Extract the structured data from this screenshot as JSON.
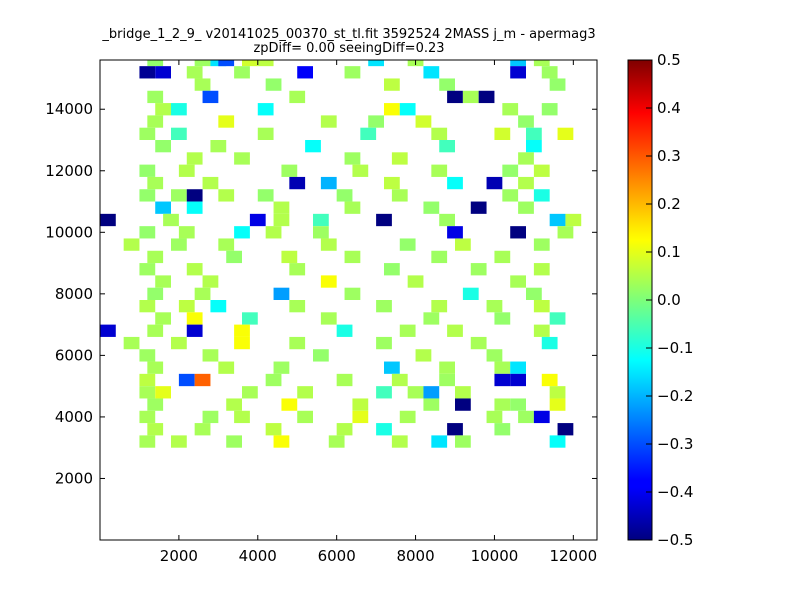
{
  "chart_data": {
    "type": "heatmap",
    "title": "_bridge_1_2_9_ v20141025_00370_st_tl.fit 3592524 2MASS j_m - apermag3",
    "subtitle": "zpDiff= 0.00 seeingDiff=0.23",
    "xlabel": "",
    "ylabel": "",
    "xlim": [
      0,
      12600
    ],
    "ylim": [
      0,
      15600
    ],
    "xticks": [
      2000,
      4000,
      6000,
      8000,
      10000,
      12000
    ],
    "yticks": [
      2000,
      4000,
      6000,
      8000,
      10000,
      12000,
      14000
    ],
    "x_tick_labels": [
      "2000",
      "4000",
      "6000",
      "8000",
      "10000",
      "12000"
    ],
    "y_tick_labels": [
      "2000",
      "4000",
      "6000",
      "8000",
      "10000",
      "12000",
      "14000"
    ],
    "colorbar": {
      "colormap": "jet",
      "vmin": -0.5,
      "vmax": 0.5,
      "ticks": [
        -0.5,
        -0.4,
        -0.3,
        -0.2,
        -0.1,
        0.0,
        0.1,
        0.2,
        0.3,
        0.4,
        0.5
      ],
      "tick_labels": [
        "−0.5",
        "−0.4",
        "−0.3",
        "−0.2",
        "−0.1",
        "0.0",
        "0.1",
        "0.2",
        "0.3",
        "0.4",
        "0.5"
      ]
    },
    "grid": false,
    "bin_size": 400,
    "cells": [
      [
        1200,
        15400,
        0.02
      ],
      [
        2400,
        15400,
        0.03
      ],
      [
        2800,
        15400,
        -0.15
      ],
      [
        3000,
        15400,
        -0.3
      ],
      [
        3600,
        15400,
        0.08
      ],
      [
        4000,
        15400,
        0.06
      ],
      [
        6800,
        15400,
        -0.15
      ],
      [
        7800,
        15400,
        0.04
      ],
      [
        10400,
        15400,
        -0.18
      ],
      [
        11000,
        15400,
        0.04
      ],
      [
        1000,
        15000,
        -0.48
      ],
      [
        1400,
        15000,
        -0.42
      ],
      [
        2200,
        15000,
        0.04
      ],
      [
        3400,
        15000,
        0.03
      ],
      [
        5000,
        15000,
        -0.38
      ],
      [
        6200,
        15000,
        0.03
      ],
      [
        8200,
        15000,
        -0.15
      ],
      [
        10400,
        15000,
        -0.42
      ],
      [
        11200,
        15000,
        0.03
      ],
      [
        2400,
        14600,
        0.04
      ],
      [
        4200,
        14600,
        0.02
      ],
      [
        7200,
        14600,
        0.06
      ],
      [
        8600,
        14600,
        0.02
      ],
      [
        11400,
        14600,
        0.02
      ],
      [
        1200,
        14200,
        0.03
      ],
      [
        2600,
        14200,
        -0.3
      ],
      [
        4800,
        14200,
        0.04
      ],
      [
        8800,
        14200,
        -0.5
      ],
      [
        9200,
        14200,
        0.04
      ],
      [
        9600,
        14200,
        -0.5
      ],
      [
        1400,
        13800,
        0.05
      ],
      [
        1800,
        13800,
        -0.1
      ],
      [
        4000,
        13800,
        -0.12
      ],
      [
        7200,
        13800,
        0.12
      ],
      [
        7600,
        13800,
        -0.12
      ],
      [
        10200,
        13800,
        0.04
      ],
      [
        11200,
        13800,
        0.02
      ],
      [
        1200,
        13400,
        0.04
      ],
      [
        3000,
        13400,
        0.1
      ],
      [
        5600,
        13400,
        0.05
      ],
      [
        6800,
        13400,
        0.02
      ],
      [
        8000,
        13400,
        0.08
      ],
      [
        10600,
        13400,
        0.02
      ],
      [
        1000,
        13000,
        0.03
      ],
      [
        1800,
        13000,
        -0.06
      ],
      [
        4000,
        13000,
        0.04
      ],
      [
        6600,
        13000,
        -0.06
      ],
      [
        8400,
        13000,
        0.05
      ],
      [
        10000,
        13000,
        0.08
      ],
      [
        10800,
        13000,
        -0.06
      ],
      [
        11600,
        13000,
        0.1
      ],
      [
        1400,
        12600,
        0.02
      ],
      [
        2800,
        12600,
        0.04
      ],
      [
        5200,
        12600,
        -0.12
      ],
      [
        8600,
        12600,
        -0.06
      ],
      [
        10800,
        12600,
        -0.12
      ],
      [
        2200,
        12200,
        0.05
      ],
      [
        3400,
        12200,
        0.04
      ],
      [
        6200,
        12200,
        0.03
      ],
      [
        7400,
        12200,
        0.06
      ],
      [
        10600,
        12200,
        0.04
      ],
      [
        1000,
        11800,
        0.02
      ],
      [
        2000,
        11800,
        0.05
      ],
      [
        4600,
        11800,
        0.03
      ],
      [
        6400,
        11800,
        0.05
      ],
      [
        8400,
        11800,
        0.04
      ],
      [
        10200,
        11800,
        0.02
      ],
      [
        11000,
        11800,
        0.06
      ],
      [
        1200,
        11400,
        0.04
      ],
      [
        2600,
        11400,
        0.05
      ],
      [
        4800,
        11400,
        -0.45
      ],
      [
        5600,
        11400,
        -0.2
      ],
      [
        7200,
        11400,
        0.06
      ],
      [
        8800,
        11400,
        -0.12
      ],
      [
        9800,
        11400,
        -0.45
      ],
      [
        10600,
        11400,
        0.05
      ],
      [
        1000,
        11000,
        0.02
      ],
      [
        1800,
        11000,
        0.03
      ],
      [
        2200,
        11000,
        -0.5
      ],
      [
        3000,
        11000,
        0.05
      ],
      [
        4000,
        11000,
        0.02
      ],
      [
        6000,
        11000,
        0.02
      ],
      [
        7400,
        11000,
        0.04
      ],
      [
        10200,
        11000,
        0.03
      ],
      [
        11000,
        11000,
        -0.1
      ],
      [
        1400,
        10600,
        -0.18
      ],
      [
        2200,
        10600,
        -0.12
      ],
      [
        4400,
        10600,
        0.05
      ],
      [
        6200,
        10600,
        0.04
      ],
      [
        8200,
        10600,
        0.02
      ],
      [
        9400,
        10600,
        -0.5
      ],
      [
        10600,
        10600,
        0.03
      ],
      [
        0,
        10200,
        -0.5
      ],
      [
        1600,
        10200,
        0.04
      ],
      [
        3800,
        10200,
        -0.4
      ],
      [
        4400,
        10200,
        0.05
      ],
      [
        5400,
        10200,
        -0.06
      ],
      [
        7000,
        10200,
        -0.5
      ],
      [
        8600,
        10200,
        0.03
      ],
      [
        11400,
        10200,
        -0.18
      ],
      [
        11800,
        10200,
        0.06
      ],
      [
        1000,
        9800,
        0.02
      ],
      [
        2000,
        9800,
        0.04
      ],
      [
        3400,
        9800,
        -0.12
      ],
      [
        4200,
        9800,
        0.05
      ],
      [
        5400,
        9800,
        0.03
      ],
      [
        8800,
        9800,
        -0.4
      ],
      [
        10400,
        9800,
        -0.5
      ],
      [
        11600,
        9800,
        0.04
      ],
      [
        600,
        9400,
        0.05
      ],
      [
        1800,
        9400,
        0.03
      ],
      [
        3000,
        9400,
        0.04
      ],
      [
        5600,
        9400,
        0.05
      ],
      [
        7600,
        9400,
        0.02
      ],
      [
        9000,
        9400,
        0.06
      ],
      [
        11000,
        9400,
        0.03
      ],
      [
        1200,
        9000,
        0.04
      ],
      [
        3200,
        9000,
        0.02
      ],
      [
        4600,
        9000,
        0.06
      ],
      [
        6200,
        9000,
        0.04
      ],
      [
        8400,
        9000,
        0.03
      ],
      [
        10000,
        9000,
        0.04
      ],
      [
        1000,
        8600,
        0.03
      ],
      [
        2200,
        8600,
        0.05
      ],
      [
        4800,
        8600,
        0.04
      ],
      [
        7200,
        8600,
        0.02
      ],
      [
        9400,
        8600,
        0.03
      ],
      [
        11000,
        8600,
        0.05
      ],
      [
        1400,
        8200,
        0.04
      ],
      [
        2600,
        8200,
        0.05
      ],
      [
        5600,
        8200,
        0.12
      ],
      [
        7800,
        8200,
        0.05
      ],
      [
        10400,
        8200,
        0.04
      ],
      [
        1200,
        7800,
        0.02
      ],
      [
        2400,
        7800,
        0.04
      ],
      [
        4400,
        7800,
        -0.22
      ],
      [
        6200,
        7800,
        0.03
      ],
      [
        9200,
        7800,
        -0.1
      ],
      [
        10800,
        7800,
        0.02
      ],
      [
        1000,
        7400,
        0.05
      ],
      [
        2000,
        7400,
        0.06
      ],
      [
        2800,
        7400,
        -0.12
      ],
      [
        4800,
        7400,
        0.04
      ],
      [
        7000,
        7400,
        0.03
      ],
      [
        8400,
        7400,
        0.05
      ],
      [
        9800,
        7400,
        0.04
      ],
      [
        11000,
        7400,
        0.06
      ],
      [
        1400,
        7000,
        0.04
      ],
      [
        2200,
        7000,
        0.12
      ],
      [
        3600,
        7000,
        -0.06
      ],
      [
        5600,
        7000,
        0.04
      ],
      [
        8200,
        7000,
        0.03
      ],
      [
        10000,
        7000,
        0.02
      ],
      [
        11400,
        7000,
        -0.06
      ],
      [
        0,
        6600,
        -0.42
      ],
      [
        1200,
        6600,
        0.04
      ],
      [
        2200,
        6600,
        -0.42
      ],
      [
        3400,
        6600,
        0.12
      ],
      [
        6000,
        6600,
        -0.1
      ],
      [
        7600,
        6600,
        0.04
      ],
      [
        8800,
        6600,
        0.05
      ],
      [
        11000,
        6600,
        0.05
      ],
      [
        600,
        6200,
        0.04
      ],
      [
        1800,
        6200,
        0.05
      ],
      [
        3400,
        6200,
        0.12
      ],
      [
        4800,
        6200,
        0.04
      ],
      [
        7000,
        6200,
        0.03
      ],
      [
        9400,
        6200,
        0.04
      ],
      [
        11200,
        6200,
        -0.1
      ],
      [
        1000,
        5800,
        0.03
      ],
      [
        2600,
        5800,
        0.04
      ],
      [
        5400,
        5800,
        0.02
      ],
      [
        8000,
        5800,
        0.05
      ],
      [
        9800,
        5800,
        0.03
      ],
      [
        1200,
        5400,
        0.04
      ],
      [
        3000,
        5400,
        0.05
      ],
      [
        4400,
        5400,
        0.03
      ],
      [
        7200,
        5400,
        -0.18
      ],
      [
        8600,
        5400,
        0.04
      ],
      [
        10000,
        5400,
        0.04
      ],
      [
        10400,
        5400,
        -0.15
      ],
      [
        1000,
        5000,
        0.06
      ],
      [
        2000,
        5000,
        -0.3
      ],
      [
        2400,
        5000,
        0.28
      ],
      [
        4200,
        5000,
        0.03
      ],
      [
        6000,
        5000,
        0.04
      ],
      [
        7400,
        5000,
        0.05
      ],
      [
        8600,
        5000,
        0.03
      ],
      [
        10000,
        5000,
        -0.42
      ],
      [
        10400,
        5000,
        -0.42
      ],
      [
        11200,
        5000,
        0.12
      ],
      [
        1000,
        4600,
        0.04
      ],
      [
        1400,
        4600,
        0.1
      ],
      [
        3600,
        4600,
        0.04
      ],
      [
        5000,
        4600,
        0.05
      ],
      [
        7000,
        4600,
        -0.06
      ],
      [
        7800,
        4600,
        0.04
      ],
      [
        8200,
        4600,
        -0.22
      ],
      [
        9000,
        4600,
        0.05
      ],
      [
        11400,
        4600,
        0.06
      ],
      [
        1200,
        4200,
        0.03
      ],
      [
        3200,
        4200,
        0.05
      ],
      [
        4600,
        4200,
        0.12
      ],
      [
        6400,
        4200,
        0.06
      ],
      [
        8200,
        4200,
        0.03
      ],
      [
        9000,
        4200,
        -0.5
      ],
      [
        10000,
        4200,
        0.04
      ],
      [
        10400,
        4200,
        0.02
      ],
      [
        11400,
        4200,
        0.1
      ],
      [
        1000,
        3800,
        0.04
      ],
      [
        2600,
        3800,
        0.03
      ],
      [
        3400,
        3800,
        0.05
      ],
      [
        5000,
        3800,
        0.04
      ],
      [
        6400,
        3800,
        0.1
      ],
      [
        7600,
        3800,
        0.04
      ],
      [
        9800,
        3800,
        0.04
      ],
      [
        10600,
        3800,
        0.03
      ],
      [
        11000,
        3800,
        -0.4
      ],
      [
        1200,
        3400,
        0.05
      ],
      [
        2400,
        3400,
        0.04
      ],
      [
        4200,
        3400,
        0.06
      ],
      [
        6000,
        3400,
        0.05
      ],
      [
        7000,
        3400,
        -0.1
      ],
      [
        8800,
        3400,
        -0.5
      ],
      [
        10000,
        3400,
        0.02
      ],
      [
        11600,
        3400,
        -0.5
      ],
      [
        1000,
        3000,
        0.04
      ],
      [
        1800,
        3000,
        0.05
      ],
      [
        3200,
        3000,
        0.03
      ],
      [
        4400,
        3000,
        0.12
      ],
      [
        5800,
        3000,
        0.04
      ],
      [
        7400,
        3000,
        0.05
      ],
      [
        8400,
        3000,
        -0.15
      ],
      [
        9000,
        3000,
        0.03
      ],
      [
        11400,
        3000,
        -0.12
      ]
    ]
  }
}
